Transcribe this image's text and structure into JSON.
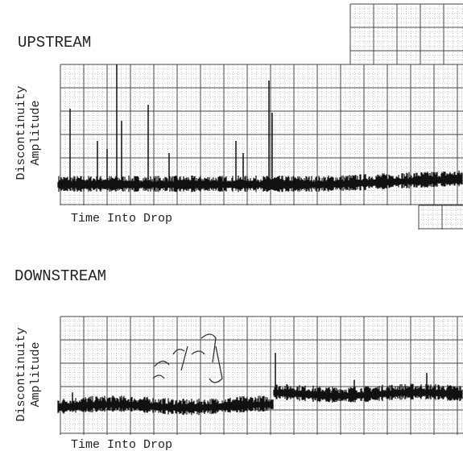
{
  "panels": [
    {
      "title": "UPSTREAM",
      "y_label": [
        "Discontinuity",
        "Amplitude"
      ],
      "x_label": "Time Into Drop"
    },
    {
      "title": "DOWNSTREAM",
      "y_label": [
        "Discontinuity",
        "Amplitude"
      ],
      "x_label": "Time Into Drop"
    }
  ]
}
